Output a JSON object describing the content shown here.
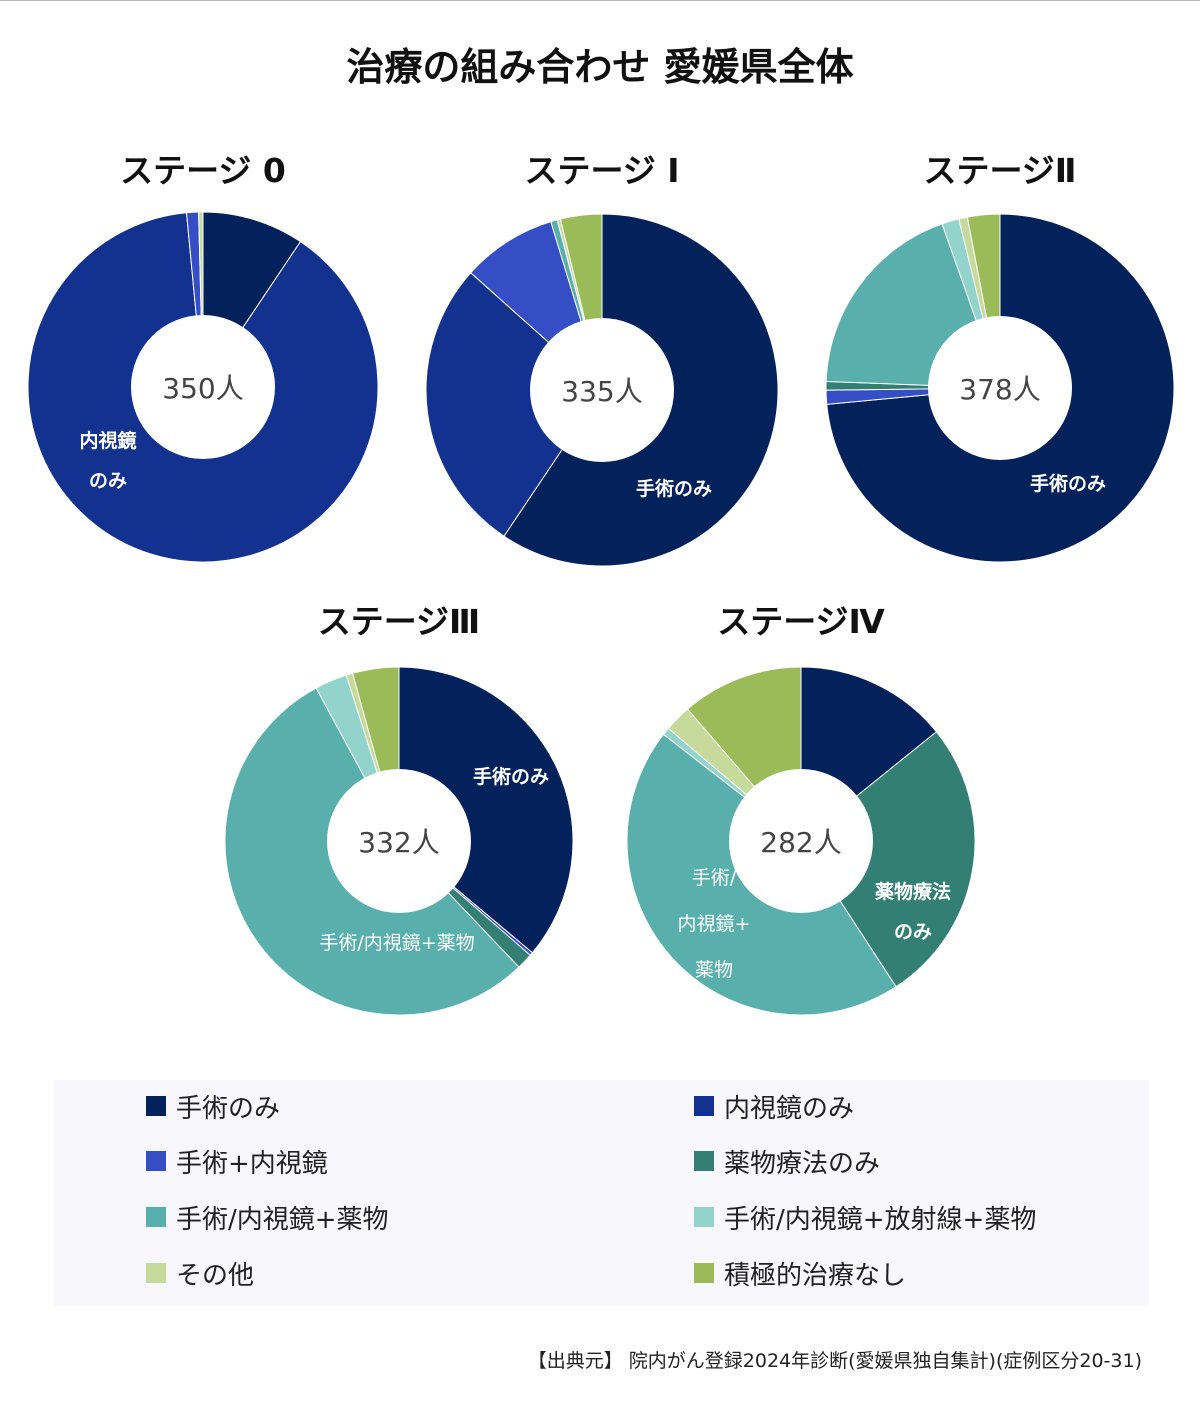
{
  "title": "治療の組み合わせ 愛媛県全体",
  "colors": {
    "surgery_only": "#03215a",
    "endoscopy_only": "#13318f",
    "surgery_endoscopy": "#354ec6",
    "drug_only": "#337f74",
    "surgery_drug": "#58afab",
    "surgery_radiation_drug": "#92d4cc",
    "other": "#c6da9c",
    "no_treatment": "#9bbb59"
  },
  "legend": [
    {
      "key": "surgery_only",
      "label": "手術のみ"
    },
    {
      "key": "endoscopy_only",
      "label": "内視鏡のみ"
    },
    {
      "key": "surgery_endoscopy",
      "label": "手術+内視鏡"
    },
    {
      "key": "drug_only",
      "label": "薬物療法のみ"
    },
    {
      "key": "surgery_drug",
      "label": "手術/内視鏡+薬物"
    },
    {
      "key": "surgery_radiation_drug",
      "label": "手術/内視鏡+放射線+薬物"
    },
    {
      "key": "other",
      "label": "その他"
    },
    {
      "key": "no_treatment",
      "label": "積極的治療なし"
    }
  ],
  "source": "【出典元】 院内がん登録2024年診断(愛媛県独自集計)(症例区分20-31)",
  "chart_data": [
    {
      "type": "pie",
      "title": "ステージ 0",
      "center_label": "350人",
      "slices": [
        {
          "key": "surgery_only",
          "value": 9.4
        },
        {
          "key": "endoscopy_only",
          "value": 89.1
        },
        {
          "key": "surgery_endoscopy",
          "value": 1.1
        },
        {
          "key": "drug_only",
          "value": 0
        },
        {
          "key": "surgery_drug",
          "value": 0
        },
        {
          "key": "surgery_radiation_drug",
          "value": 0
        },
        {
          "key": "other",
          "value": 0.4
        },
        {
          "key": "no_treatment",
          "value": 0
        }
      ],
      "slice_labels": [
        {
          "lines": [
            "内視鏡",
            "のみ"
          ],
          "bold": true
        }
      ]
    },
    {
      "type": "pie",
      "title": "ステージ I",
      "center_label": "335人",
      "slices": [
        {
          "key": "surgery_only",
          "value": 59.4
        },
        {
          "key": "endoscopy_only",
          "value": 27.2
        },
        {
          "key": "surgery_endoscopy",
          "value": 8.7
        },
        {
          "key": "drug_only",
          "value": 0
        },
        {
          "key": "surgery_drug",
          "value": 0.6
        },
        {
          "key": "surgery_radiation_drug",
          "value": 0
        },
        {
          "key": "other",
          "value": 0.3
        },
        {
          "key": "no_treatment",
          "value": 3.8
        }
      ],
      "slice_labels": [
        {
          "lines": [
            "手術のみ"
          ],
          "bold": true
        }
      ]
    },
    {
      "type": "pie",
      "title": "ステージⅡ",
      "center_label": "378人",
      "slices": [
        {
          "key": "surgery_only",
          "value": 73.5
        },
        {
          "key": "endoscopy_only",
          "value": 0
        },
        {
          "key": "surgery_endoscopy",
          "value": 1.3
        },
        {
          "key": "drug_only",
          "value": 0.8
        },
        {
          "key": "surgery_drug",
          "value": 19.0
        },
        {
          "key": "surgery_radiation_drug",
          "value": 1.6
        },
        {
          "key": "other",
          "value": 0.8
        },
        {
          "key": "no_treatment",
          "value": 3.0
        }
      ],
      "slice_labels": [
        {
          "lines": [
            "手術のみ"
          ],
          "bold": true
        }
      ]
    },
    {
      "type": "pie",
      "title": "ステージⅢ",
      "center_label": "332人",
      "slices": [
        {
          "key": "surgery_only",
          "value": 36.1
        },
        {
          "key": "endoscopy_only",
          "value": 0
        },
        {
          "key": "surgery_endoscopy",
          "value": 0.3
        },
        {
          "key": "drug_only",
          "value": 1.5
        },
        {
          "key": "surgery_drug",
          "value": 54.2
        },
        {
          "key": "surgery_radiation_drug",
          "value": 3.0
        },
        {
          "key": "other",
          "value": 0.6
        },
        {
          "key": "no_treatment",
          "value": 4.3
        }
      ],
      "slice_labels": [
        {
          "lines": [
            "手術のみ"
          ],
          "bold": true
        },
        {
          "lines": [
            "手術/内視鏡+薬物"
          ],
          "bold": false
        }
      ]
    },
    {
      "type": "pie",
      "title": "ステージⅣ",
      "center_label": "282人",
      "slices": [
        {
          "key": "surgery_only",
          "value": 14.2
        },
        {
          "key": "endoscopy_only",
          "value": 0
        },
        {
          "key": "surgery_endoscopy",
          "value": 0
        },
        {
          "key": "drug_only",
          "value": 26.6
        },
        {
          "key": "surgery_drug",
          "value": 44.7
        },
        {
          "key": "surgery_radiation_drug",
          "value": 0.7
        },
        {
          "key": "other",
          "value": 2.5
        },
        {
          "key": "no_treatment",
          "value": 11.3
        }
      ],
      "slice_labels": [
        {
          "lines": [
            "薬物療法",
            "のみ"
          ],
          "bold": true
        },
        {
          "lines": [
            "手術/",
            "内視鏡+",
            "薬物"
          ],
          "bold": false
        }
      ]
    }
  ]
}
